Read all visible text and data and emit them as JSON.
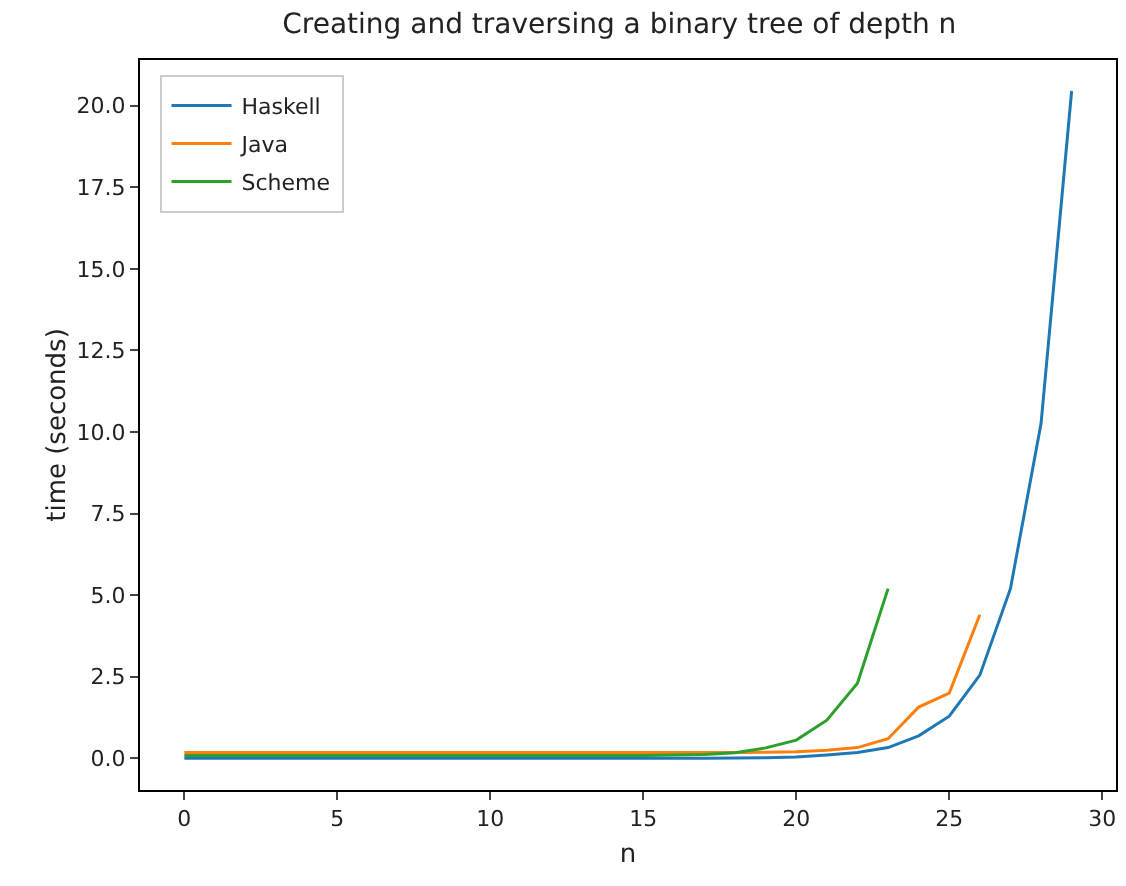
{
  "chart_data": {
    "type": "line",
    "title": "Creating and traversing a binary tree of depth n",
    "xlabel": "n",
    "ylabel": "time (seconds)",
    "xlim": [
      -1.45,
      30.45
    ],
    "xticks": [
      0,
      5,
      10,
      15,
      20,
      25,
      30
    ],
    "ylim": [
      -0.97,
      21.4
    ],
    "yticks": [
      {
        "value": 0,
        "label": "0.0"
      },
      {
        "value": 2.5,
        "label": "2.5"
      },
      {
        "value": 5,
        "label": "5.0"
      },
      {
        "value": 7.5,
        "label": "7.5"
      },
      {
        "value": 10,
        "label": "10.0"
      },
      {
        "value": 12.5,
        "label": "12.5"
      },
      {
        "value": 15,
        "label": "15.0"
      },
      {
        "value": 17.5,
        "label": "17.5"
      },
      {
        "value": 20,
        "label": "20.0"
      }
    ],
    "grid": false,
    "legend": "top left",
    "marker": "none",
    "line_style": "solid",
    "series": [
      {
        "name": "Haskell",
        "color": "#1f77b4",
        "x": [
          0,
          1,
          2,
          3,
          4,
          5,
          6,
          7,
          8,
          9,
          10,
          11,
          12,
          13,
          14,
          15,
          16,
          17,
          18,
          19,
          20,
          21,
          22,
          23,
          24,
          25,
          26,
          27,
          28,
          29
        ],
        "values": [
          0.0,
          0.0,
          0.0,
          0.0,
          0.0,
          0.0,
          0.0,
          0.0,
          0.0,
          0.0,
          0.0,
          0.0,
          0.0,
          0.0,
          0.0,
          0.0,
          0.0,
          0.0,
          0.01,
          0.02,
          0.04,
          0.1,
          0.18,
          0.33,
          0.69,
          1.29,
          2.55,
          5.2,
          10.26,
          20.45
        ]
      },
      {
        "name": "Java",
        "color": "#ff7f0e",
        "x": [
          0,
          1,
          2,
          3,
          4,
          5,
          6,
          7,
          8,
          9,
          10,
          11,
          12,
          13,
          14,
          15,
          16,
          17,
          18,
          19,
          20,
          21,
          22,
          23,
          24,
          25,
          26
        ],
        "values": [
          0.18,
          0.18,
          0.18,
          0.18,
          0.18,
          0.18,
          0.18,
          0.18,
          0.18,
          0.18,
          0.18,
          0.18,
          0.18,
          0.18,
          0.18,
          0.18,
          0.18,
          0.18,
          0.18,
          0.19,
          0.2,
          0.25,
          0.33,
          0.6,
          1.57,
          2.0,
          4.4
        ]
      },
      {
        "name": "Scheme",
        "color": "#2ca02c",
        "x": [
          0,
          1,
          2,
          3,
          4,
          5,
          6,
          7,
          8,
          9,
          10,
          11,
          12,
          13,
          14,
          15,
          16,
          17,
          18,
          19,
          20,
          21,
          22,
          23
        ],
        "values": [
          0.09,
          0.09,
          0.09,
          0.09,
          0.09,
          0.09,
          0.09,
          0.09,
          0.09,
          0.09,
          0.09,
          0.09,
          0.09,
          0.09,
          0.09,
          0.09,
          0.1,
          0.12,
          0.17,
          0.32,
          0.56,
          1.17,
          2.3,
          5.2
        ]
      }
    ]
  }
}
